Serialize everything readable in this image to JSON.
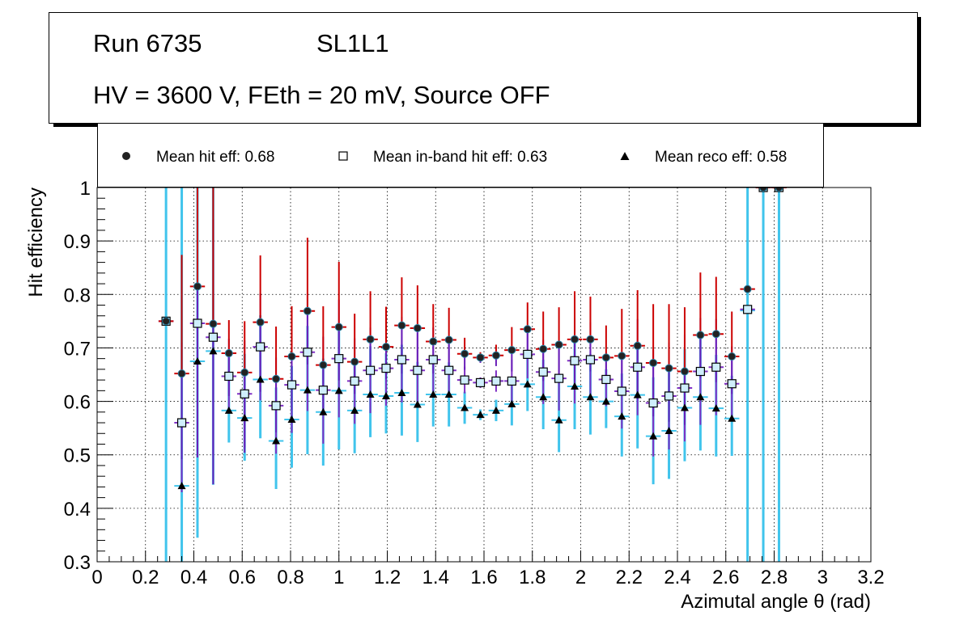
{
  "info": {
    "run": "Run 6735",
    "layer": "SL1L1",
    "conditions": "HV = 3600 V, FEth = 20 mV, Source OFF"
  },
  "legend": {
    "hit": "Mean hit  eff: 0.68",
    "inband": "Mean in-band hit eff: 0.63",
    "reco": "Mean reco eff: 0.58"
  },
  "colors": {
    "hit_err_hi": "#cc0000",
    "hit_err_lo": "#6a1fb8",
    "inband_err": "#7e2fc4",
    "reco_err": "#40c4ec",
    "inband_fill": "#cfeefc",
    "grid": "#000000"
  },
  "chart_data": {
    "type": "scatter",
    "xlabel": "Azimutal angle θ (rad)",
    "ylabel": "Hit efficiency",
    "xlim": [
      0,
      3.2
    ],
    "ylim": [
      0.3,
      1.0
    ],
    "xticks": [
      "0",
      "0.2",
      "0.4",
      "0.6",
      "0.8",
      "1",
      "1.2",
      "1.4",
      "1.6",
      "1.8",
      "2",
      "2.2",
      "2.4",
      "2.6",
      "2.8",
      "3",
      "3.2"
    ],
    "yticks": [
      "0.3",
      "0.4",
      "0.5",
      "0.6",
      "0.7",
      "0.8",
      "0.9",
      "1"
    ],
    "grid": true,
    "x": [
      0.285,
      0.35,
      0.415,
      0.48,
      0.545,
      0.61,
      0.675,
      0.74,
      0.805,
      0.87,
      0.935,
      1.0,
      1.065,
      1.13,
      1.195,
      1.26,
      1.325,
      1.39,
      1.455,
      1.52,
      1.585,
      1.65,
      1.715,
      1.78,
      1.845,
      1.91,
      1.975,
      2.04,
      2.105,
      2.17,
      2.235,
      2.3,
      2.365,
      2.43,
      2.495,
      2.56,
      2.625,
      2.69,
      2.755,
      2.82
    ],
    "series": [
      {
        "name": "Mean hit  eff: 0.68",
        "values": [
          0.75,
          0.652,
          0.815,
          0.745,
          0.69,
          0.654,
          0.748,
          0.642,
          0.684,
          0.769,
          0.668,
          0.739,
          0.674,
          0.716,
          0.702,
          0.742,
          0.737,
          0.712,
          0.715,
          0.689,
          0.682,
          0.686,
          0.696,
          0.735,
          0.698,
          0.706,
          0.716,
          0.716,
          0.682,
          0.685,
          0.704,
          0.672,
          0.662,
          0.656,
          0.724,
          0.726,
          0.684,
          0.81,
          1.0,
          1.0
        ],
        "err_up": [
          0.0,
          0.222,
          0.4,
          0.4,
          0.062,
          0.096,
          0.125,
          0.098,
          0.094,
          0.137,
          0.11,
          0.122,
          0.09,
          0.09,
          0.075,
          0.09,
          0.08,
          0.07,
          0.06,
          0.03,
          0.01,
          0.02,
          0.043,
          0.05,
          0.07,
          0.07,
          0.09,
          0.08,
          0.06,
          0.088,
          0.104,
          0.11,
          0.12,
          0.12,
          0.117,
          0.107,
          0.084,
          0.0,
          0.0,
          0.0
        ],
        "err_down": [
          0.0,
          0.16,
          0.32,
          0.3,
          0.08,
          0.15,
          0.13,
          0.1,
          0.1,
          0.1,
          0.09,
          0.1,
          0.06,
          0.07,
          0.06,
          0.09,
          0.08,
          0.06,
          0.06,
          0.03,
          0.01,
          0.02,
          0.04,
          0.05,
          0.06,
          0.06,
          0.08,
          0.06,
          0.05,
          0.07,
          0.1,
          0.1,
          0.1,
          0.1,
          0.08,
          0.09,
          0.07,
          0.0,
          0.0,
          0.0
        ]
      },
      {
        "name": "Mean in-band hit eff: 0.63",
        "values": [
          0.75,
          0.56,
          0.746,
          0.72,
          0.647,
          0.614,
          0.702,
          0.592,
          0.631,
          0.692,
          0.621,
          0.68,
          0.638,
          0.658,
          0.662,
          0.678,
          0.658,
          0.678,
          0.658,
          0.64,
          0.635,
          0.638,
          0.638,
          0.688,
          0.655,
          0.643,
          0.676,
          0.678,
          0.641,
          0.619,
          0.664,
          0.597,
          0.61,
          0.625,
          0.656,
          0.664,
          0.633,
          0.772,
          1.0,
          1.0
        ],
        "err_up": [
          0.0,
          0.15,
          0.25,
          0.22,
          0.07,
          0.1,
          0.1,
          0.09,
          0.09,
          0.11,
          0.1,
          0.11,
          0.08,
          0.08,
          0.07,
          0.08,
          0.07,
          0.06,
          0.05,
          0.025,
          0.01,
          0.02,
          0.04,
          0.045,
          0.06,
          0.06,
          0.08,
          0.07,
          0.05,
          0.07,
          0.09,
          0.1,
          0.1,
          0.1,
          0.1,
          0.09,
          0.07,
          0.0,
          0.0,
          0.0
        ],
        "err_down": [
          0.0,
          0.13,
          0.25,
          0.22,
          0.07,
          0.1,
          0.1,
          0.09,
          0.09,
          0.11,
          0.1,
          0.11,
          0.08,
          0.08,
          0.07,
          0.08,
          0.07,
          0.06,
          0.05,
          0.025,
          0.01,
          0.02,
          0.04,
          0.045,
          0.06,
          0.06,
          0.08,
          0.07,
          0.05,
          0.07,
          0.09,
          0.1,
          0.1,
          0.1,
          0.1,
          0.09,
          0.07,
          0.0,
          0.0,
          0.0
        ]
      },
      {
        "name": "Mean reco eff: 0.58",
        "values": [
          0.75,
          0.442,
          0.675,
          0.694,
          0.583,
          0.569,
          0.641,
          0.526,
          0.566,
          0.621,
          0.58,
          0.62,
          0.583,
          0.613,
          0.61,
          0.616,
          0.594,
          0.613,
          0.613,
          0.588,
          0.575,
          0.583,
          0.595,
          0.632,
          0.608,
          0.565,
          0.628,
          0.608,
          0.6,
          0.572,
          0.612,
          0.535,
          0.545,
          0.588,
          0.608,
          0.587,
          0.568,
          0.77,
          1.0,
          1.0
        ],
        "err_up": [
          1.0,
          1.0,
          1.0,
          1.0,
          0.1,
          0.12,
          0.12,
          0.1,
          0.1,
          0.12,
          0.1,
          0.12,
          0.09,
          0.09,
          0.08,
          0.09,
          0.08,
          0.07,
          0.06,
          0.03,
          0.01,
          0.02,
          0.045,
          0.05,
          0.07,
          0.07,
          0.09,
          0.08,
          0.06,
          0.08,
          0.1,
          0.11,
          0.11,
          0.11,
          0.11,
          0.1,
          0.08,
          1.0,
          1.0,
          1.0
        ],
        "err_down": [
          1.0,
          1.0,
          0.33,
          0.25,
          0.06,
          0.08,
          0.11,
          0.09,
          0.09,
          0.12,
          0.1,
          0.11,
          0.08,
          0.08,
          0.07,
          0.08,
          0.07,
          0.06,
          0.06,
          0.03,
          0.01,
          0.02,
          0.04,
          0.05,
          0.06,
          0.06,
          0.08,
          0.07,
          0.05,
          0.075,
          0.1,
          0.09,
          0.09,
          0.1,
          0.1,
          0.09,
          0.07,
          1.0,
          1.0,
          1.0
        ]
      }
    ]
  }
}
